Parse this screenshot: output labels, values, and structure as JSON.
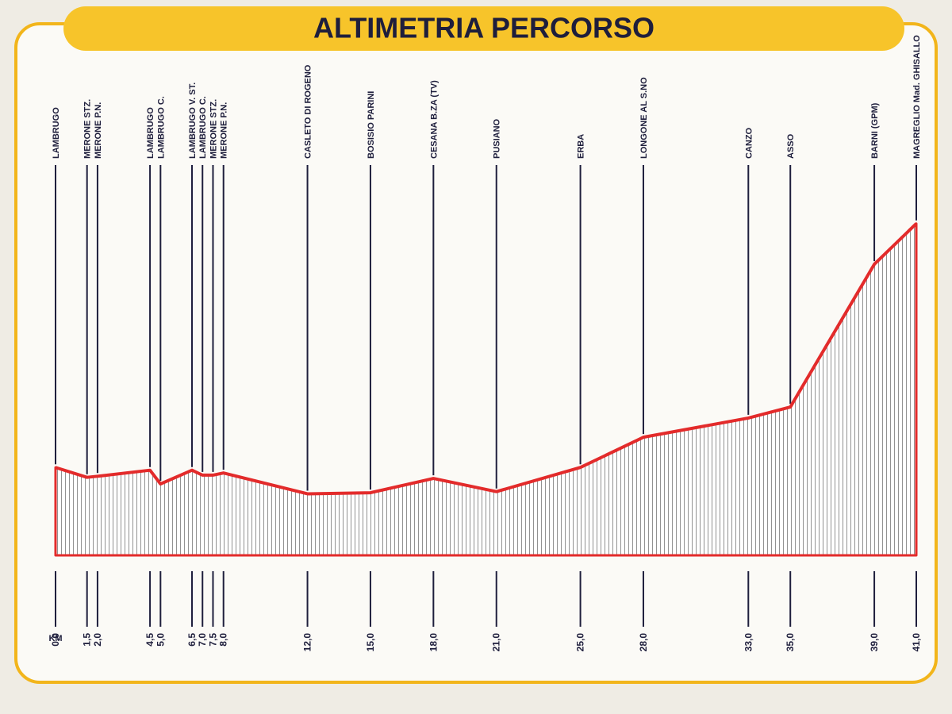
{
  "chart_data": {
    "type": "area",
    "title": "ALTIMETRIA PERCORSO",
    "x_label": "KM",
    "categories": [
      "LAMBRUGO",
      "MERONE STZ.",
      "MERONE P.N.",
      "LAMBRUGO",
      "LAMBRUGO C.",
      "LAMBRUGO V. ST.",
      "LAMBRUGO C.",
      "MERONE STZ.",
      "MERONE P.N.",
      "CASLETO DI ROGENO",
      "BOSISIO PARINI",
      "CESANA B.ZA (TV)",
      "PUSIANO",
      "ERBA",
      "LONGONE AL S.NO",
      "CANZO",
      "ASSO",
      "BARNI (GPM)",
      "MAGREGLIO Mad. GHISALLO"
    ],
    "x": [
      0,
      1.5,
      2,
      4.5,
      5,
      6.5,
      7,
      7.5,
      8,
      12,
      15,
      18,
      21,
      25,
      28,
      33,
      35,
      39,
      41
    ],
    "values": [
      310,
      292,
      294,
      305,
      280,
      305,
      296,
      296,
      300,
      262,
      264,
      290,
      266,
      310,
      365,
      400,
      420,
      680,
      754
    ],
    "color": "#e32b2b",
    "xlim": [
      0,
      41
    ],
    "ylim": [
      150,
      800
    ],
    "xticks": [
      {
        "value": 0,
        "label": "0,0"
      },
      {
        "value": 1.5,
        "label": "1,5"
      },
      {
        "value": 2,
        "label": "2,0"
      },
      {
        "value": 4.5,
        "label": "4,5"
      },
      {
        "value": 5,
        "label": "5,0"
      },
      {
        "value": 6.5,
        "label": "6,5"
      },
      {
        "value": 7,
        "label": "7,0"
      },
      {
        "value": 7.5,
        "label": "7,5"
      },
      {
        "value": 8,
        "label": "8,0"
      },
      {
        "value": 12,
        "label": "12,0"
      },
      {
        "value": 15,
        "label": "15,0"
      },
      {
        "value": 18,
        "label": "18,0"
      },
      {
        "value": 21,
        "label": "21,0"
      },
      {
        "value": 25,
        "label": "25,0"
      },
      {
        "value": 28,
        "label": "28,0"
      },
      {
        "value": 33,
        "label": "33,0"
      },
      {
        "value": 35,
        "label": "35,0"
      },
      {
        "value": 39,
        "label": "39,0"
      },
      {
        "value": 41,
        "label": "41,0"
      }
    ]
  }
}
